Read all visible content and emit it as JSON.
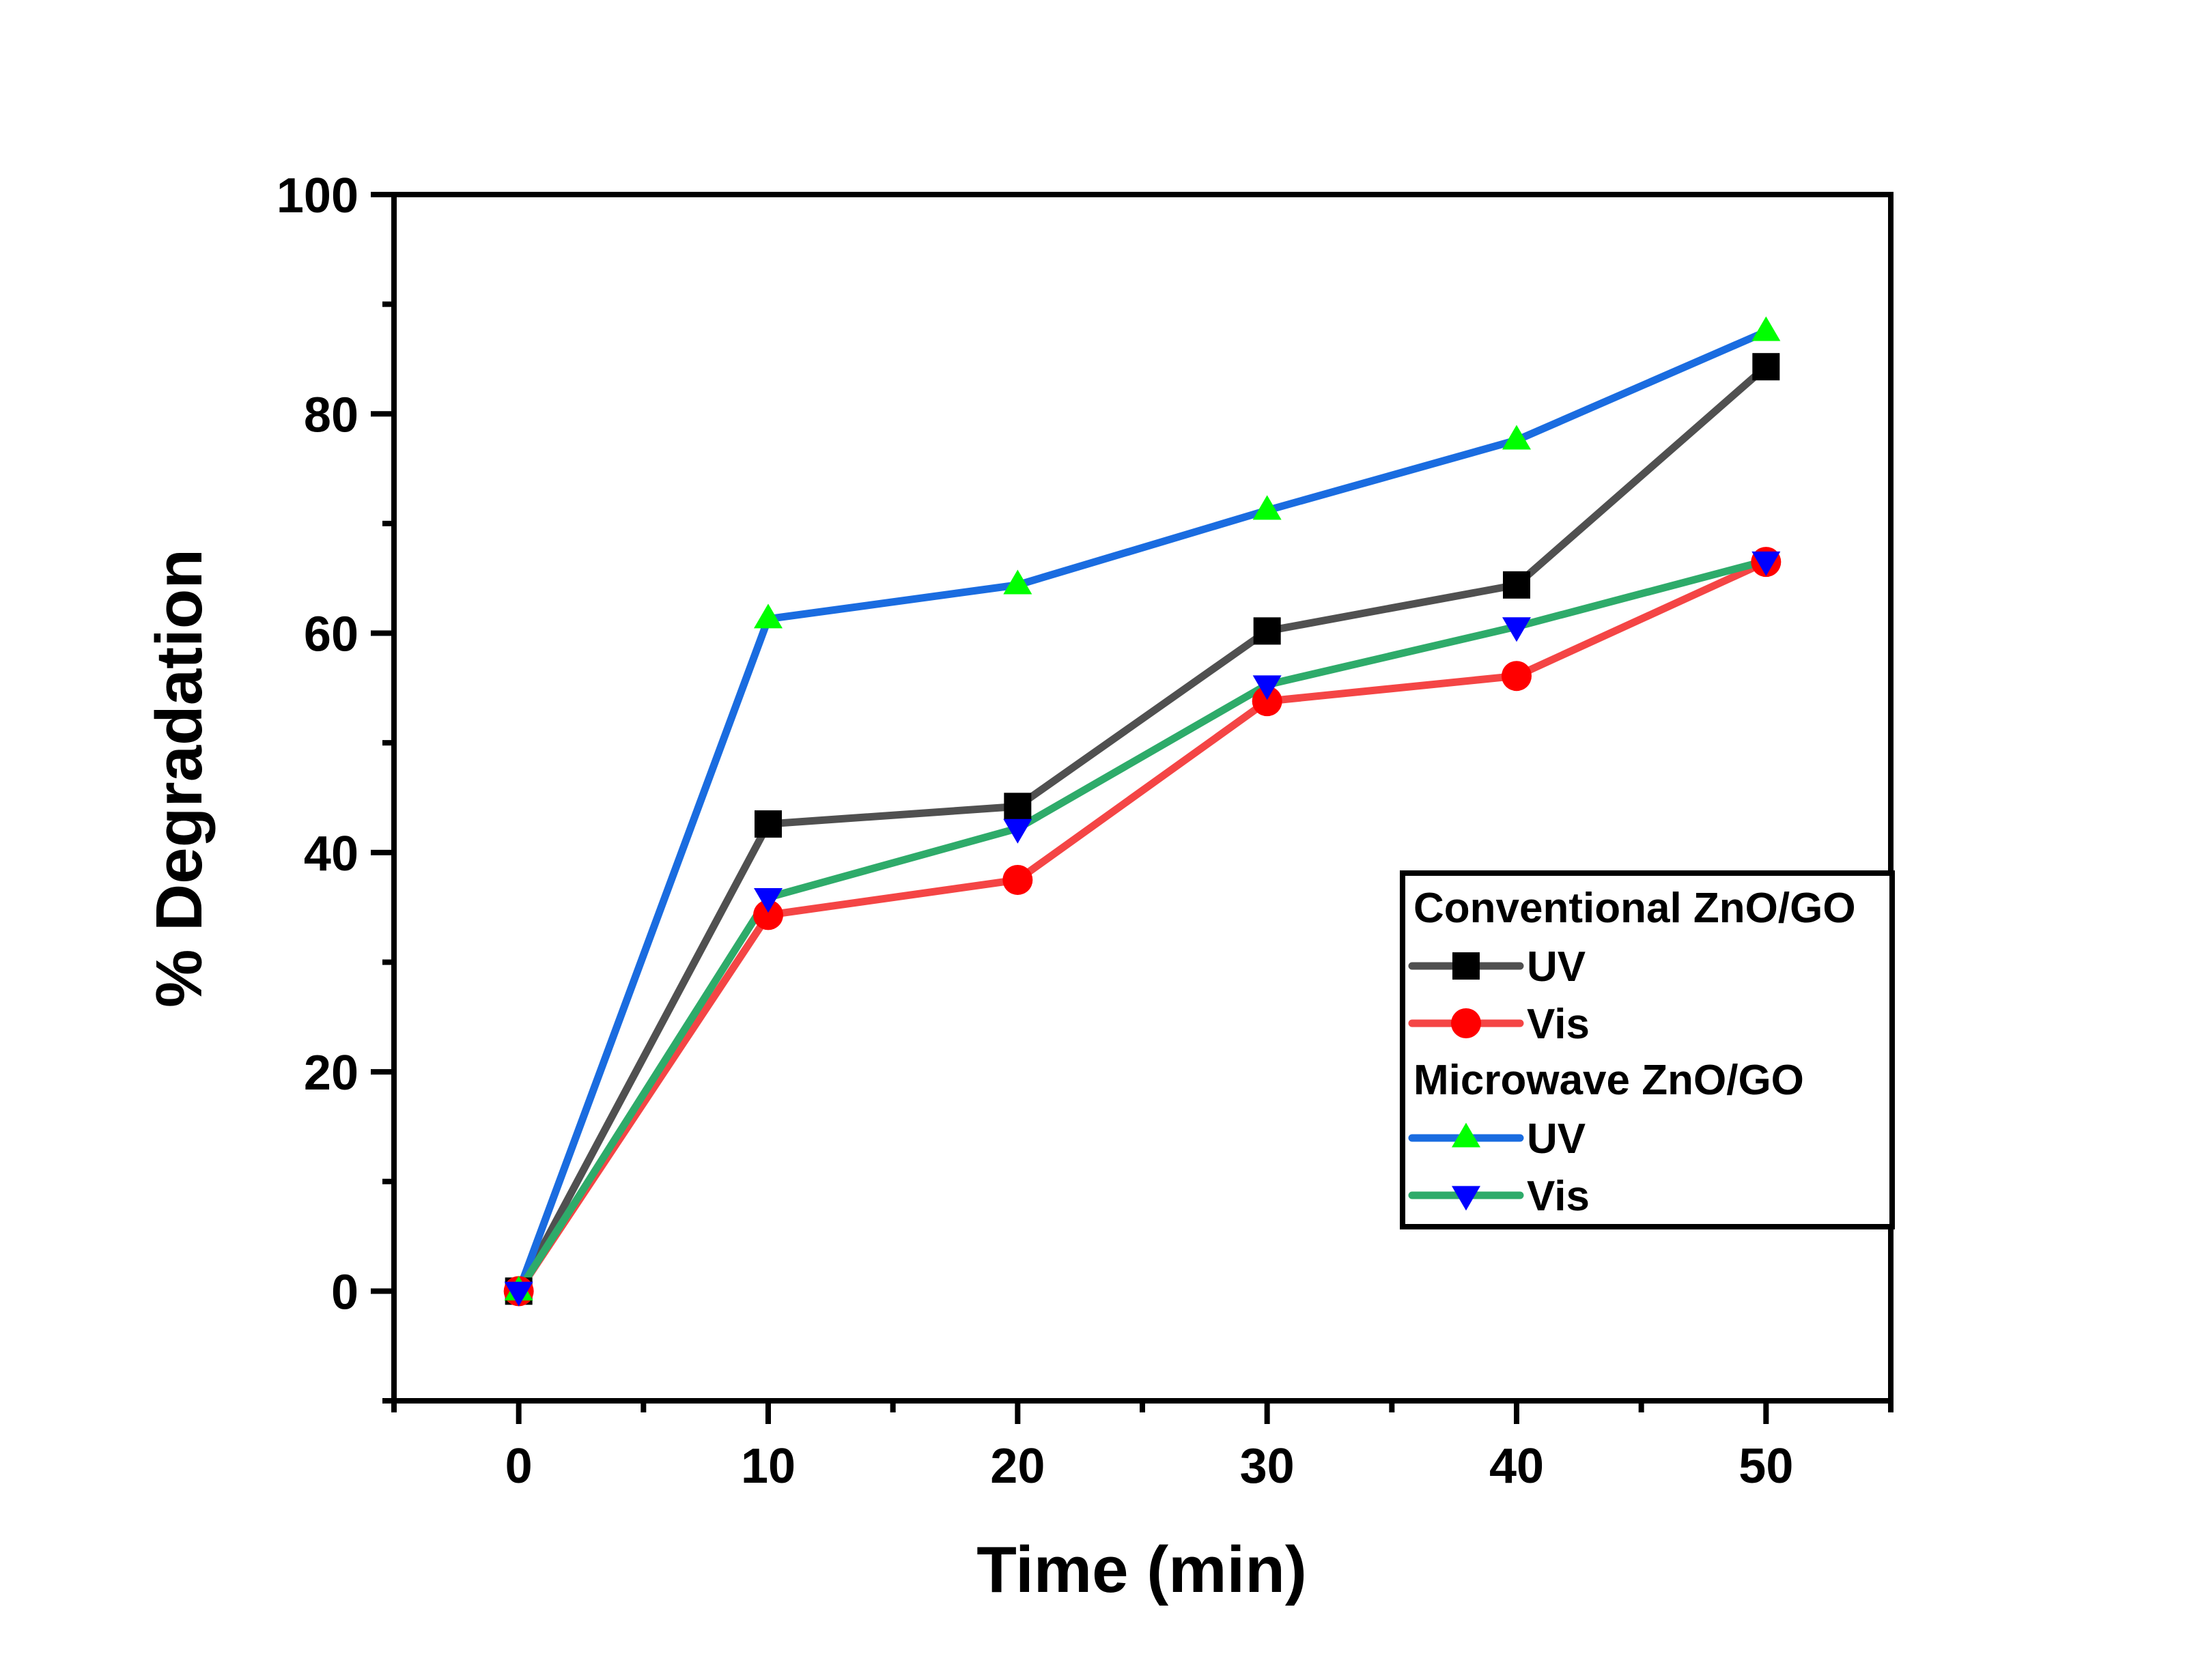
{
  "chart_data": {
    "type": "line",
    "title": "",
    "xlabel": "Time (min)",
    "ylabel": "% Degradation",
    "xlim": [
      -5,
      55
    ],
    "ylim": [
      -10,
      100
    ],
    "x": [
      0,
      10,
      20,
      30,
      40,
      50
    ],
    "x_major_ticks": [
      0,
      10,
      20,
      30,
      40,
      50
    ],
    "x_tick_labels": [
      "0",
      "10",
      "20",
      "30",
      "40",
      "50"
    ],
    "x_minor_ticks": [
      -5,
      5,
      15,
      25,
      35,
      45,
      55
    ],
    "y_major_ticks": [
      0,
      20,
      40,
      60,
      80,
      100
    ],
    "y_tick_labels": [
      "0",
      "20",
      "40",
      "60",
      "80",
      "100"
    ],
    "y_minor_ticks": [
      -10,
      10,
      30,
      50,
      70,
      90
    ],
    "grid": false,
    "legend": {
      "placement": "lower-right",
      "groups": [
        {
          "title": "Conventional ZnO/GO",
          "entries": [
            0,
            1
          ]
        },
        {
          "title": "Microwave ZnO/GO",
          "entries": [
            2,
            3
          ]
        }
      ]
    },
    "series": [
      {
        "name": "UV",
        "group": "Conventional ZnO/GO",
        "line_color": "#505050",
        "marker": "square",
        "marker_color": "#000000",
        "values": [
          0,
          42.6,
          44.2,
          60.2,
          64.4,
          84.3
        ]
      },
      {
        "name": "Vis",
        "group": "Conventional ZnO/GO",
        "line_color": "#f44545",
        "marker": "circle",
        "marker_color": "#ff0000",
        "values": [
          0,
          34.3,
          37.5,
          53.8,
          56.1,
          66.5
        ]
      },
      {
        "name": "UV",
        "group": "Microwave ZnO/GO",
        "line_color": "#1a6ce0",
        "marker": "triangle-up",
        "marker_color": "#00ff00",
        "values": [
          0,
          61.3,
          64.4,
          71.2,
          77.6,
          87.5
        ]
      },
      {
        "name": "Vis",
        "group": "Microwave ZnO/GO",
        "line_color": "#2eab6a",
        "marker": "triangle-down",
        "marker_color": "#0000ff",
        "values": [
          0,
          35.9,
          42.2,
          55.3,
          60.6,
          66.6
        ]
      }
    ]
  }
}
